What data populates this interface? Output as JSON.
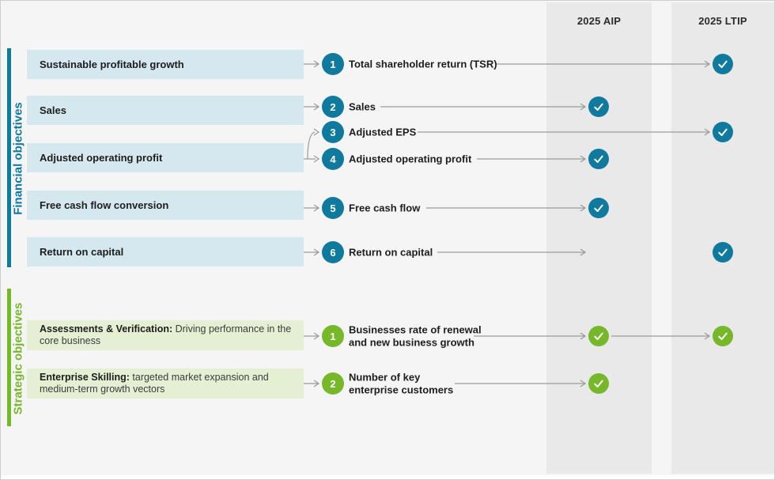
{
  "header": {
    "columns": [
      {
        "id": "aip",
        "label": "2025 AIP"
      },
      {
        "id": "ltip",
        "label": "2025 LTIP"
      }
    ]
  },
  "colors": {
    "teal": "#107a9e",
    "light_blue": "#d5e8f0",
    "green": "#77b82a",
    "light_green": "#e5efd3",
    "column_band": "#e9e9e9",
    "background": "#f5f5f5",
    "arrow": "#9a9a9a"
  },
  "financial": {
    "section_label": "Financial objectives",
    "objectives": [
      "Sustainable profitable growth",
      "Sales",
      "Adjusted operating profit",
      "Free cash flow conversion",
      "Return on capital"
    ],
    "metrics": [
      {
        "num": "1",
        "lines": [
          "Total shareholder return (TSR)"
        ],
        "aip": false,
        "ltip": true
      },
      {
        "num": "2",
        "lines": [
          "Sales"
        ],
        "aip": true,
        "ltip": false
      },
      {
        "num": "3",
        "lines": [
          "Adjusted EPS"
        ],
        "aip": false,
        "ltip": true
      },
      {
        "num": "4",
        "lines": [
          "Adjusted operating profit"
        ],
        "aip": true,
        "ltip": false
      },
      {
        "num": "5",
        "lines": [
          "Free cash flow"
        ],
        "aip": true,
        "ltip": false
      },
      {
        "num": "6",
        "lines": [
          "Return on capital"
        ],
        "aip": false,
        "ltip": true
      }
    ]
  },
  "strategic": {
    "section_label": "Strategic objectives",
    "objectives": [
      {
        "lead": "Assessments & Verification:",
        "rest": "Driving performance in the core business"
      },
      {
        "lead": "Enterprise Skilling:",
        "rest": "targeted market expansion and medium-term growth vectors"
      }
    ],
    "metrics": [
      {
        "num": "1",
        "lines": [
          "Businesses rate of renewal",
          "and new business growth"
        ],
        "aip": true,
        "ltip": true
      },
      {
        "num": "2",
        "lines": [
          "Number of key",
          "enterprise customers"
        ],
        "aip": true,
        "ltip": false
      }
    ]
  },
  "icons": {
    "check": "check-icon"
  }
}
